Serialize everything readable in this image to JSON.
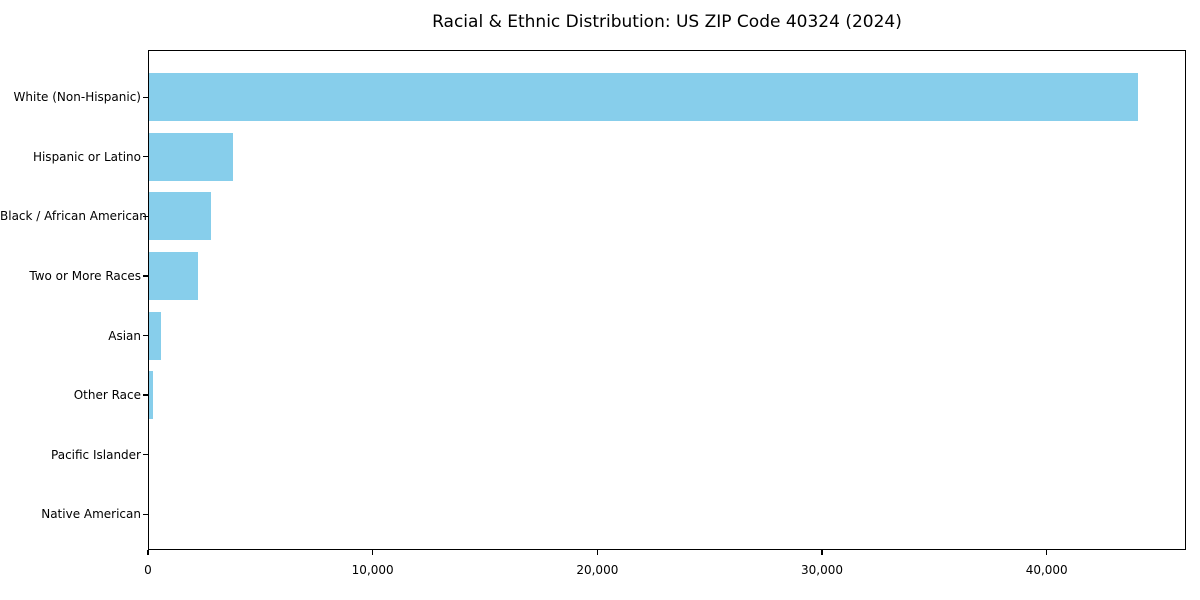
{
  "chart_data": {
    "type": "bar",
    "orientation": "horizontal",
    "title": "Racial & Ethnic Distribution: US ZIP Code 40324 (2024)",
    "categories": [
      "White (Non-Hispanic)",
      "Hispanic or Latino",
      "Black / African American",
      "Two or More Races",
      "Asian",
      "Other Race",
      "Pacific Islander",
      "Native American"
    ],
    "values": [
      44000,
      3750,
      2750,
      2170,
      520,
      180,
      0,
      0
    ],
    "xlabel": "",
    "ylabel": "",
    "xlim": [
      0,
      46200
    ],
    "xticks": [
      0,
      10000,
      20000,
      30000,
      40000
    ],
    "xtick_labels": [
      "0",
      "10,000",
      "20,000",
      "30,000",
      "40,000"
    ],
    "bar_color": "#87CEEB",
    "grid": false,
    "legend_position": "none"
  }
}
